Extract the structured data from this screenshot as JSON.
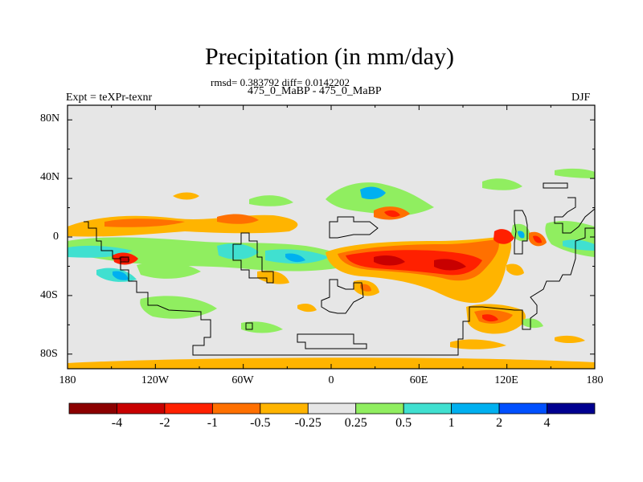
{
  "title": "Precipitation (in mm/day)",
  "stats": "rmsd= 0.383792 diff= 0.0142202",
  "subtitle": "475_0_MaBP - 475_0_MaBP",
  "left_label": "Expt = teXPr-texnr",
  "right_label": "DJF",
  "lat_labels": [
    "80N",
    "40N",
    "0",
    "40S",
    "80S"
  ],
  "lon_labels": [
    "180",
    "120W",
    "60W",
    "0",
    "60E",
    "120E",
    "180"
  ],
  "colorbar": {
    "colors": [
      "#8b0000",
      "#c80000",
      "#ff2000",
      "#ff7000",
      "#ffb400",
      "#e6e6e6",
      "#90ee60",
      "#40e0d0",
      "#00b0f0",
      "#0050ff",
      "#000090"
    ],
    "labels": [
      "-4",
      "-2",
      "-1",
      "-0.5",
      "-0.25",
      "0.25",
      "0.5",
      "1",
      "2",
      "4"
    ]
  },
  "palette": {
    "background": "#e6e6e6",
    "orange": "#ffb400",
    "darkorange": "#ff7000",
    "red": "#ff2000",
    "darkred": "#c80000",
    "green": "#90ee60",
    "cyan": "#40e0d0",
    "blue": "#00b0f0"
  }
}
